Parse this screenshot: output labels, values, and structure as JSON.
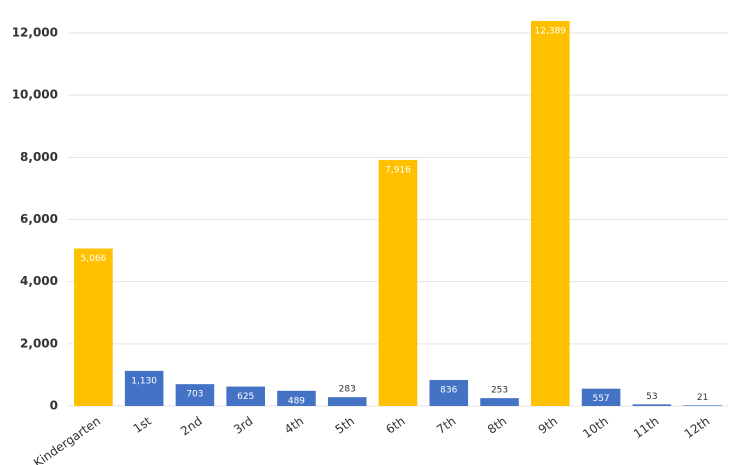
{
  "chart_data": {
    "type": "bar",
    "categories": [
      "Kindergarten",
      "1st",
      "2nd",
      "3rd",
      "4th",
      "5th",
      "6th",
      "7th",
      "8th",
      "9th",
      "10th",
      "11th",
      "12th"
    ],
    "values": [
      5066,
      1130,
      703,
      625,
      489,
      283,
      7916,
      836,
      253,
      12389,
      557,
      53,
      21
    ],
    "value_labels": [
      "5,066",
      "1,130",
      "703",
      "625",
      "489",
      "283",
      "7,916",
      "836",
      "253",
      "12,389",
      "557",
      "53",
      "21"
    ],
    "colors": [
      "#ffc000",
      "#4472c4",
      "#4472c4",
      "#4472c4",
      "#4472c4",
      "#4472c4",
      "#ffc000",
      "#4472c4",
      "#4472c4",
      "#ffc000",
      "#4472c4",
      "#4472c4",
      "#4472c4"
    ],
    "ylim": [
      0,
      12000
    ],
    "yticks": [
      {
        "value": 0,
        "label": "0"
      },
      {
        "value": 2000,
        "label": "2,000"
      },
      {
        "value": 4000,
        "label": "4,000"
      },
      {
        "value": 6000,
        "label": "6,000"
      },
      {
        "value": 8000,
        "label": "8,000"
      },
      {
        "value": 10000,
        "label": "10,000"
      },
      {
        "value": 12000,
        "label": "12,000"
      }
    ],
    "grid": true
  }
}
